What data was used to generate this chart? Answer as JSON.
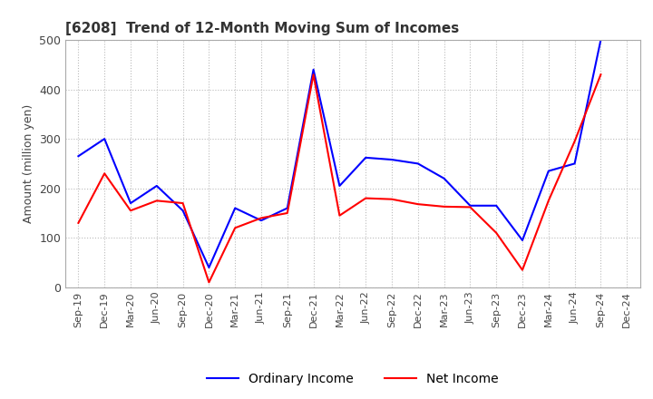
{
  "title": "[6208]  Trend of 12-Month Moving Sum of Incomes",
  "ylabel": "Amount (million yen)",
  "xlabels": [
    "Sep-19",
    "Dec-19",
    "Mar-20",
    "Jun-20",
    "Sep-20",
    "Dec-20",
    "Mar-21",
    "Jun-21",
    "Sep-21",
    "Dec-21",
    "Mar-22",
    "Jun-22",
    "Sep-22",
    "Dec-22",
    "Mar-23",
    "Jun-23",
    "Sep-23",
    "Dec-23",
    "Mar-24",
    "Jun-24",
    "Sep-24",
    "Dec-24"
  ],
  "ordinary_income": [
    265,
    300,
    170,
    205,
    155,
    40,
    160,
    135,
    160,
    440,
    205,
    262,
    258,
    250,
    220,
    165,
    165,
    95,
    235,
    250,
    500,
    null
  ],
  "net_income": [
    130,
    230,
    155,
    175,
    170,
    10,
    120,
    140,
    150,
    430,
    145,
    180,
    178,
    168,
    163,
    162,
    110,
    35,
    175,
    295,
    430,
    null
  ],
  "ylim": [
    0,
    500
  ],
  "yticks": [
    0,
    100,
    200,
    300,
    400,
    500
  ],
  "ordinary_color": "#0000ff",
  "net_color": "#ff0000",
  "background_color": "#ffffff",
  "grid_color": "#bbbbbb",
  "title_fontsize": 11,
  "axis_fontsize": 9,
  "legend_fontsize": 10
}
